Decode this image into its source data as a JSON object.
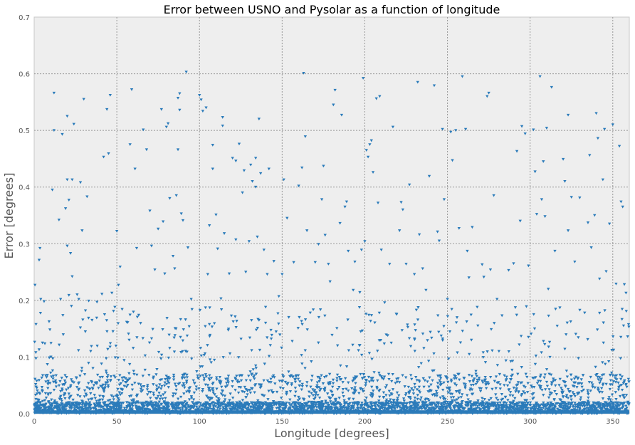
{
  "chart_data": {
    "type": "scatter",
    "title": "Error between USNO and Pysolar as a function of longitude",
    "xlabel": "Longitude [degrees]",
    "ylabel": "Error [degrees]",
    "xlim": [
      0,
      360
    ],
    "ylim": [
      0,
      0.7
    ],
    "xticks": [
      "0",
      "50",
      "100",
      "150",
      "200",
      "250",
      "300",
      "350"
    ],
    "yticks": [
      "0.0",
      "0.1",
      "0.2",
      "0.3",
      "0.4",
      "0.5",
      "0.6",
      "0.7"
    ],
    "grid": true,
    "marker": "triangle-down",
    "color": "#2b7bba",
    "background": "#eeeeee",
    "series": [
      {
        "points": [
          [
            0.5,
            0.227
          ],
          [
            3.5,
            0.292
          ],
          [
            3,
            0.271
          ],
          [
            4,
            0.202
          ],
          [
            6,
            0.198
          ],
          [
            1,
            0.108
          ],
          [
            3,
            0.113
          ],
          [
            5,
            0.125
          ],
          [
            8,
            0.087
          ],
          [
            10,
            0.072
          ],
          [
            12,
            0.566
          ],
          [
            11,
            0.395
          ],
          [
            12,
            0.5
          ],
          [
            15,
            0.342
          ],
          [
            16,
            0.202
          ],
          [
            17,
            0.493
          ],
          [
            19,
            0.362
          ],
          [
            20,
            0.413
          ],
          [
            20,
            0.296
          ],
          [
            21,
            0.377
          ],
          [
            20,
            0.525
          ],
          [
            21,
            0.209
          ],
          [
            22,
            0.283
          ],
          [
            23,
            0.413
          ],
          [
            23,
            0.242
          ],
          [
            24,
            0.511
          ],
          [
            26,
            0.21
          ],
          [
            27,
            0.202
          ],
          [
            28,
            0.408
          ],
          [
            29,
            0.323
          ],
          [
            30,
            0.555
          ],
          [
            32,
            0.383
          ],
          [
            33,
            0.199
          ],
          [
            35,
            0.165
          ],
          [
            38,
            0.197
          ],
          [
            41,
            0.211
          ],
          [
            42,
            0.453
          ],
          [
            44,
            0.537
          ],
          [
            45,
            0.459
          ],
          [
            46,
            0.562
          ],
          [
            47,
            0.213
          ],
          [
            48,
            0.181
          ],
          [
            50,
            0.322
          ],
          [
            51,
            0.227
          ],
          [
            52,
            0.259
          ],
          [
            58,
            0.475
          ],
          [
            59,
            0.572
          ],
          [
            61,
            0.432
          ],
          [
            62,
            0.292
          ],
          [
            66,
            0.501
          ],
          [
            68,
            0.466
          ],
          [
            70,
            0.358
          ],
          [
            71,
            0.296
          ],
          [
            73,
            0.254
          ],
          [
            75,
            0.326
          ],
          [
            77,
            0.537
          ],
          [
            78,
            0.339
          ],
          [
            79,
            0.247
          ],
          [
            80,
            0.506
          ],
          [
            81,
            0.512
          ],
          [
            82,
            0.38
          ],
          [
            84,
            0.278
          ],
          [
            85,
            0.256
          ],
          [
            86,
            0.385
          ],
          [
            87,
            0.557
          ],
          [
            87,
            0.466
          ],
          [
            88,
            0.536
          ],
          [
            88,
            0.565
          ],
          [
            89,
            0.353
          ],
          [
            90,
            0.341
          ],
          [
            92,
            0.603
          ],
          [
            93,
            0.293
          ],
          [
            95,
            0.202
          ],
          [
            100,
            0.562
          ],
          [
            101,
            0.554
          ],
          [
            102,
            0.534
          ],
          [
            104,
            0.54
          ],
          [
            105,
            0.246
          ],
          [
            106,
            0.332
          ],
          [
            108,
            0.432
          ],
          [
            108,
            0.474
          ],
          [
            110,
            0.351
          ],
          [
            111,
            0.291
          ],
          [
            113,
            0.203
          ],
          [
            114,
            0.523
          ],
          [
            114,
            0.508
          ],
          [
            115,
            0.318
          ],
          [
            118,
            0.247
          ],
          [
            120,
            0.451
          ],
          [
            122,
            0.446
          ],
          [
            122,
            0.307
          ],
          [
            124,
            0.476
          ],
          [
            126,
            0.39
          ],
          [
            127,
            0.429
          ],
          [
            128,
            0.25
          ],
          [
            130,
            0.304
          ],
          [
            131,
            0.439
          ],
          [
            132,
            0.41
          ],
          [
            134,
            0.451
          ],
          [
            134,
            0.4
          ],
          [
            135,
            0.312
          ],
          [
            136,
            0.52
          ],
          [
            137,
            0.424
          ],
          [
            139,
            0.289
          ],
          [
            140,
            0.188
          ],
          [
            141,
            0.246
          ],
          [
            142,
            0.432
          ],
          [
            145,
            0.269
          ],
          [
            148,
            0.207
          ],
          [
            150,
            0.246
          ],
          [
            151,
            0.413
          ],
          [
            153,
            0.345
          ],
          [
            154,
            0.17
          ],
          [
            157,
            0.267
          ],
          [
            160,
            0.402
          ],
          [
            162,
            0.434
          ],
          [
            163,
            0.601
          ],
          [
            164,
            0.489
          ],
          [
            165,
            0.323
          ],
          [
            167,
            0.178
          ],
          [
            170,
            0.267
          ],
          [
            172,
            0.299
          ],
          [
            174,
            0.378
          ],
          [
            175,
            0.437
          ],
          [
            176,
            0.315
          ],
          [
            178,
            0.264
          ],
          [
            179,
            0.233
          ],
          [
            181,
            0.545
          ],
          [
            182,
            0.571
          ],
          [
            185,
            0.336
          ],
          [
            186,
            0.527
          ],
          [
            188,
            0.365
          ],
          [
            189,
            0.374
          ],
          [
            190,
            0.287
          ],
          [
            193,
            0.218
          ],
          [
            194,
            0.268
          ],
          [
            197,
            0.214
          ],
          [
            198,
            0.289
          ],
          [
            199,
            0.592
          ],
          [
            200,
            0.304
          ],
          [
            201,
            0.465
          ],
          [
            202,
            0.453
          ],
          [
            203,
            0.475
          ],
          [
            204,
            0.482
          ],
          [
            205,
            0.426
          ],
          [
            207,
            0.556
          ],
          [
            208,
            0.372
          ],
          [
            209,
            0.56
          ],
          [
            210,
            0.289
          ],
          [
            212,
            0.196
          ],
          [
            215,
            0.264
          ],
          [
            217,
            0.506
          ],
          [
            219,
            0.176
          ],
          [
            221,
            0.323
          ],
          [
            222,
            0.373
          ],
          [
            223,
            0.36
          ],
          [
            225,
            0.264
          ],
          [
            227,
            0.404
          ],
          [
            230,
            0.246
          ],
          [
            232,
            0.585
          ],
          [
            233,
            0.316
          ],
          [
            235,
            0.256
          ],
          [
            237,
            0.218
          ],
          [
            239,
            0.419
          ],
          [
            242,
            0.579
          ],
          [
            244,
            0.321
          ],
          [
            245,
            0.305
          ],
          [
            247,
            0.502
          ],
          [
            248,
            0.378
          ],
          [
            250,
            0.202
          ],
          [
            252,
            0.497
          ],
          [
            253,
            0.447
          ],
          [
            255,
            0.5
          ],
          [
            257,
            0.327
          ],
          [
            259,
            0.595
          ],
          [
            261,
            0.502
          ],
          [
            262,
            0.287
          ],
          [
            263,
            0.24
          ],
          [
            265,
            0.329
          ],
          [
            268,
            0.188
          ],
          [
            271,
            0.263
          ],
          [
            272,
            0.241
          ],
          [
            274,
            0.56
          ],
          [
            275,
            0.566
          ],
          [
            276,
            0.254
          ],
          [
            278,
            0.385
          ],
          [
            280,
            0.202
          ],
          [
            283,
            0.173
          ],
          [
            287,
            0.253
          ],
          [
            290,
            0.265
          ],
          [
            292,
            0.463
          ],
          [
            294,
            0.34
          ],
          [
            295,
            0.507
          ],
          [
            297,
            0.494
          ],
          [
            299,
            0.261
          ],
          [
            302,
            0.501
          ],
          [
            303,
            0.427
          ],
          [
            304,
            0.352
          ],
          [
            306,
            0.595
          ],
          [
            307,
            0.378
          ],
          [
            308,
            0.445
          ],
          [
            309,
            0.348
          ],
          [
            310,
            0.504
          ],
          [
            311,
            0.22
          ],
          [
            313,
            0.576
          ],
          [
            315,
            0.287
          ],
          [
            318,
            0.187
          ],
          [
            320,
            0.449
          ],
          [
            321,
            0.41
          ],
          [
            323,
            0.527
          ],
          [
            323,
            0.323
          ],
          [
            325,
            0.382
          ],
          [
            327,
            0.268
          ],
          [
            330,
            0.381
          ],
          [
            333,
            0.178
          ],
          [
            335,
            0.337
          ],
          [
            336,
            0.456
          ],
          [
            337,
            0.293
          ],
          [
            339,
            0.35
          ],
          [
            340,
            0.53
          ],
          [
            341,
            0.486
          ],
          [
            342,
            0.238
          ],
          [
            344,
            0.413
          ],
          [
            345,
            0.502
          ],
          [
            346,
            0.251
          ],
          [
            348,
            0.335
          ],
          [
            350,
            0.51
          ],
          [
            352,
            0.229
          ],
          [
            354,
            0.472
          ],
          [
            355,
            0.374
          ],
          [
            356,
            0.365
          ],
          [
            357,
            0.228
          ],
          [
            358,
            0.213
          ],
          [
            359,
            0.136
          ]
        ]
      }
    ]
  }
}
